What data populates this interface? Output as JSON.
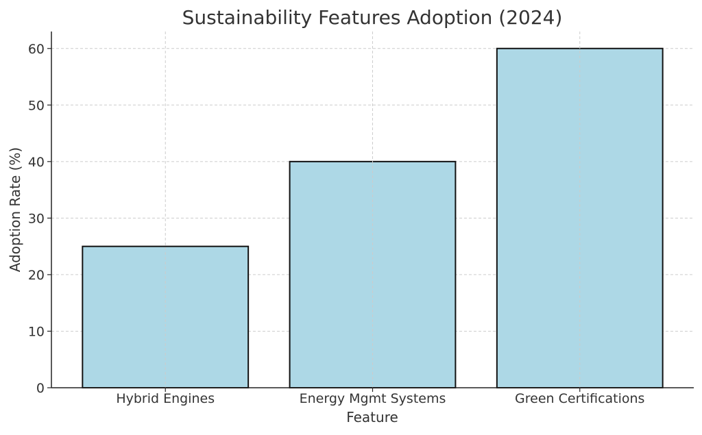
{
  "chart_data": {
    "type": "bar",
    "title": "Sustainability Features Adoption (2024)",
    "xlabel": "Feature",
    "ylabel": "Adoption Rate (%)",
    "categories": [
      "Hybrid Engines",
      "Energy Mgmt Systems",
      "Green Certifications"
    ],
    "values": [
      25,
      40,
      60
    ],
    "ylim": [
      0,
      63
    ],
    "yticks": [
      0,
      10,
      20,
      30,
      40,
      50,
      60
    ],
    "grid": true,
    "bar_color": "#add8e6",
    "bar_edge_color": "#111111"
  }
}
